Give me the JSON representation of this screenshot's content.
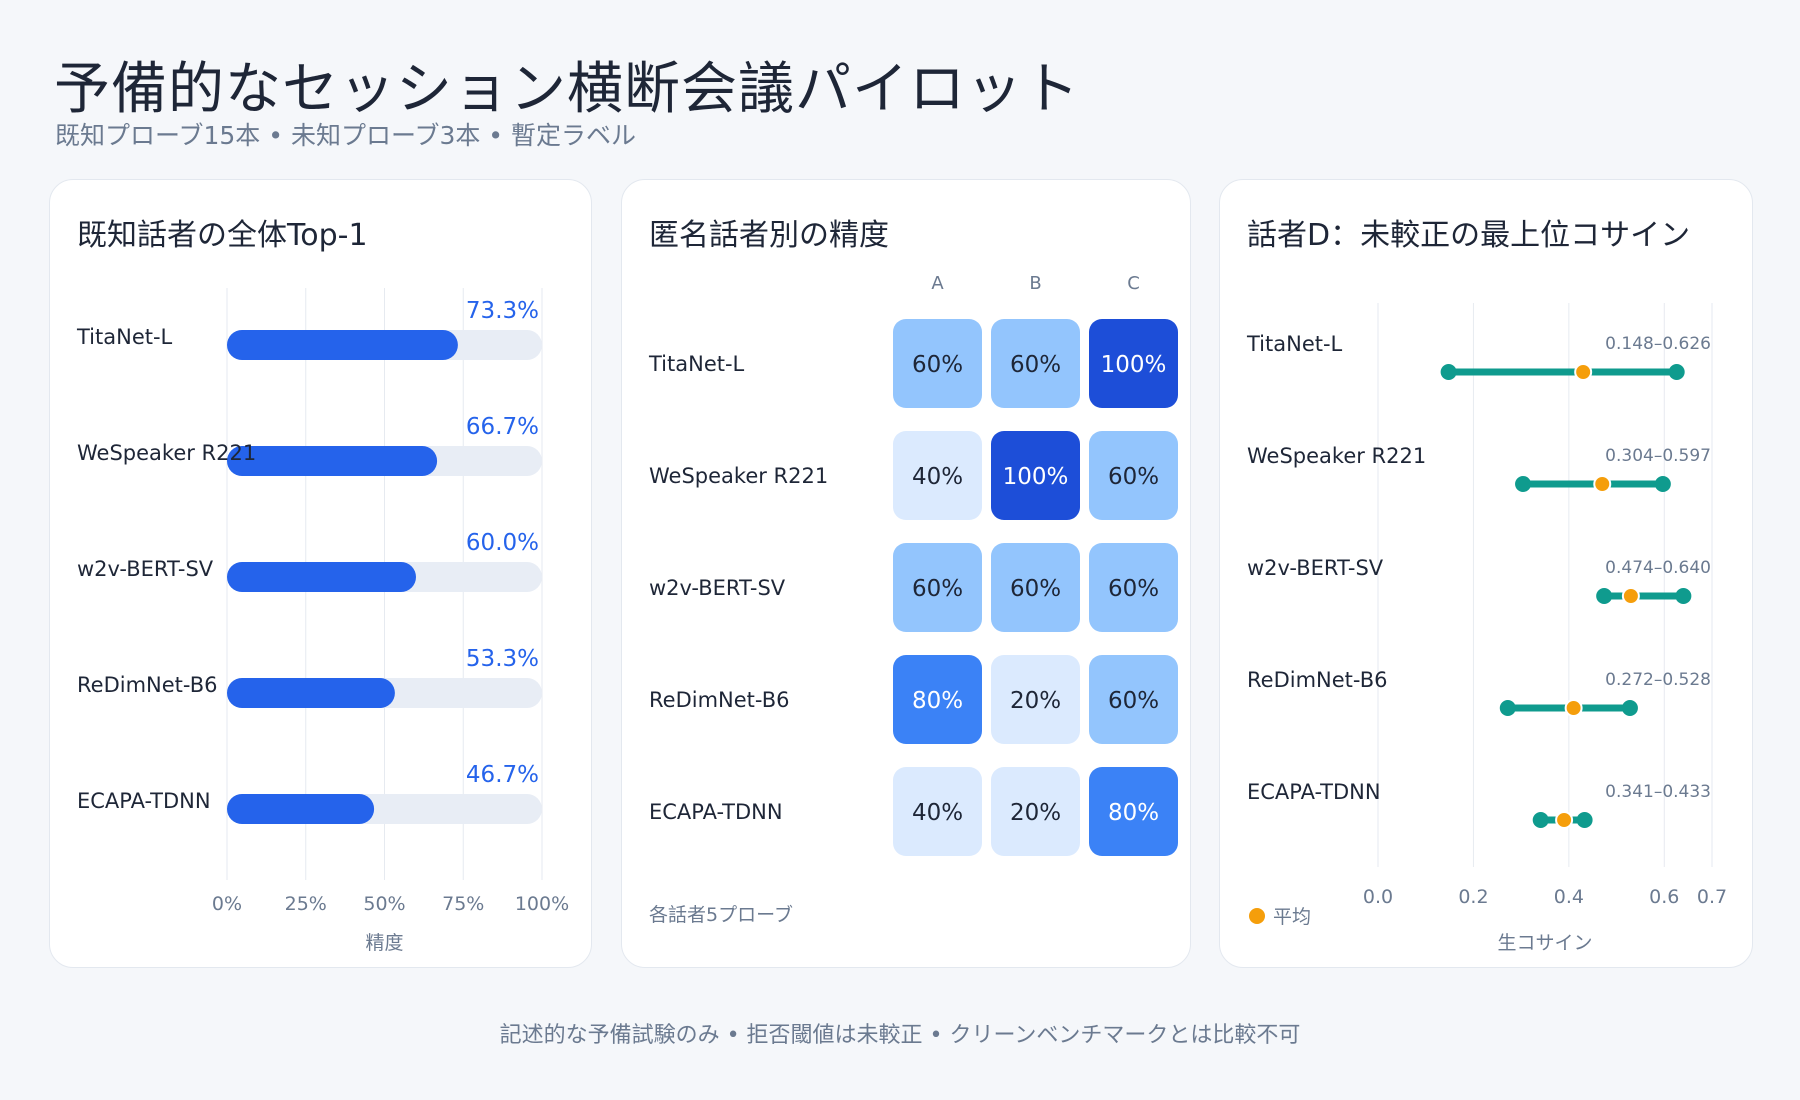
{
  "header": {
    "title": "予備的なセッション横断会議パイロット",
    "subtitle": "既知プローブ15本 • 未知プローブ3本 • 暫定ラベル"
  },
  "footer": {
    "note": "記述的な予備試験のみ • 拒否閾値は未較正 • クリーンベンチマークとは比較不可"
  },
  "colors": {
    "bar": "#2563eb",
    "bar_track": "#e8edf5",
    "range_line": "#0f9b8e",
    "mean_dot": "#f59e0b",
    "heat_low": "#dbeafe",
    "heat_mid": "#93c5fd",
    "heat_high": "#3b82f6",
    "heat_max": "#1d4ed8"
  },
  "chart_data": [
    {
      "type": "bar",
      "title": "既知話者の全体Top-1",
      "xlabel": "精度",
      "categories": [
        "TitaNet-L",
        "WeSpeaker R221",
        "w2v-BERT-SV",
        "ReDimNet-B6",
        "ECAPA-TDNN"
      ],
      "values": [
        73.3,
        66.7,
        60.0,
        53.3,
        46.7
      ],
      "value_labels": [
        "73.3%",
        "66.7%",
        "60.0%",
        "53.3%",
        "46.7%"
      ],
      "xlim": [
        0,
        100
      ],
      "ticks": [
        0,
        25,
        50,
        75,
        100
      ],
      "tick_labels": [
        "0%",
        "25%",
        "50%",
        "75%",
        "100%"
      ],
      "grid": true
    },
    {
      "type": "heatmap",
      "title": "匿名話者別の精度",
      "columns": [
        "A",
        "B",
        "C"
      ],
      "rows": [
        "TitaNet-L",
        "WeSpeaker R221",
        "w2v-BERT-SV",
        "ReDimNet-B6",
        "ECAPA-TDNN"
      ],
      "values": [
        [
          60,
          60,
          100
        ],
        [
          40,
          100,
          60
        ],
        [
          60,
          60,
          60
        ],
        [
          80,
          20,
          60
        ],
        [
          40,
          20,
          80
        ]
      ],
      "cell_labels": [
        [
          "60%",
          "60%",
          "100%"
        ],
        [
          "40%",
          "100%",
          "60%"
        ],
        [
          "60%",
          "60%",
          "60%"
        ],
        [
          "80%",
          "20%",
          "60%"
        ],
        [
          "40%",
          "20%",
          "80%"
        ]
      ],
      "note": "各話者5プローブ"
    },
    {
      "type": "scatter",
      "title": "話者D：未較正の最上位コサイン",
      "xlabel": "生コサイン",
      "categories": [
        "TitaNet-L",
        "WeSpeaker R221",
        "w2v-BERT-SV",
        "ReDimNet-B6",
        "ECAPA-TDNN"
      ],
      "min": [
        0.148,
        0.304,
        0.474,
        0.272,
        0.341
      ],
      "max": [
        0.626,
        0.597,
        0.64,
        0.528,
        0.433
      ],
      "mean": [
        0.43,
        0.47,
        0.53,
        0.41,
        0.39
      ],
      "range_labels": [
        "0.148–0.626",
        "0.304–0.597",
        "0.474–0.640",
        "0.272–0.528",
        "0.341–0.433"
      ],
      "xlim": [
        0,
        0.7
      ],
      "ticks": [
        0.0,
        0.2,
        0.4,
        0.6,
        0.7
      ],
      "tick_labels": [
        "0.0",
        "0.2",
        "0.4",
        "0.6",
        "0.7"
      ],
      "legend": "平均",
      "legend_position": "bottom-left",
      "grid": true
    }
  ]
}
